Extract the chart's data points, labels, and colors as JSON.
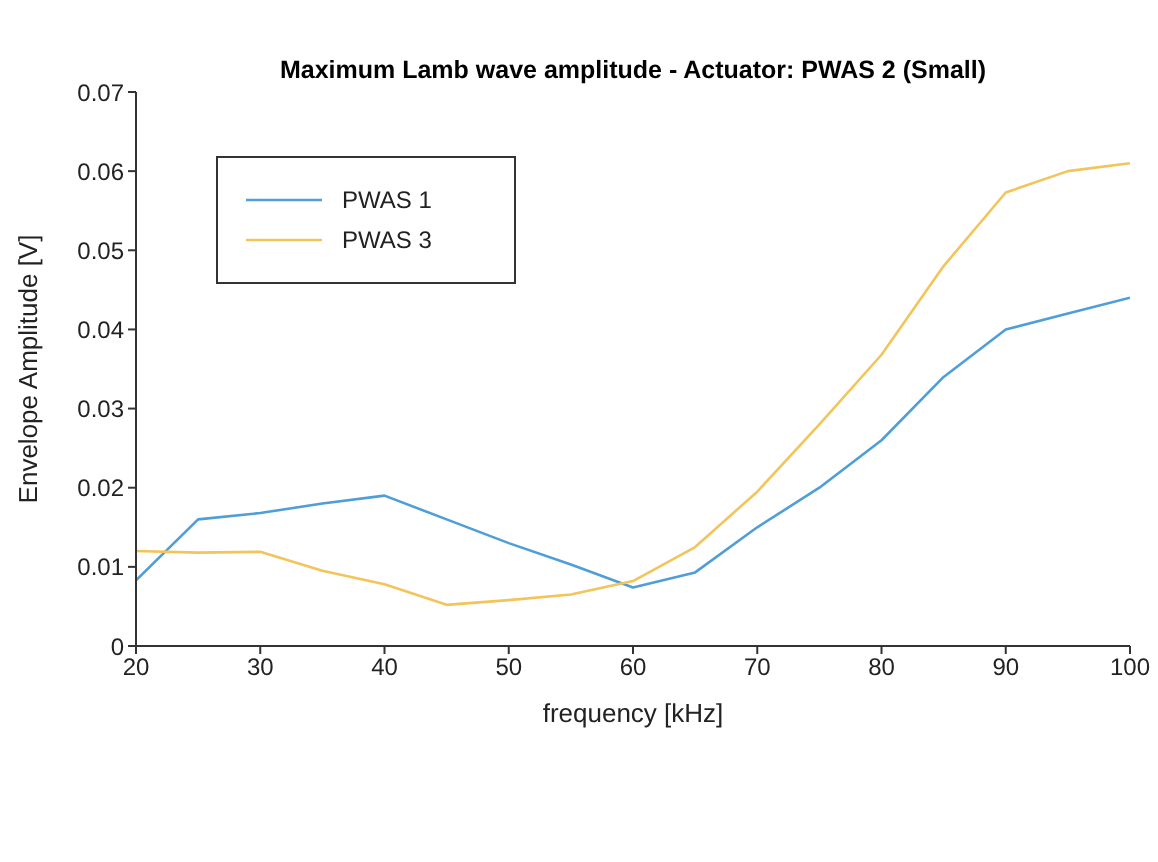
{
  "chart_data": {
    "type": "line",
    "title": "Maximum Lamb wave amplitude - Actuator: PWAS 2 (Small)",
    "xlabel": "frequency [kHz]",
    "ylabel": "Envelope Amplitude [V]",
    "x": [
      20,
      25,
      30,
      35,
      40,
      45,
      50,
      55,
      60,
      65,
      70,
      75,
      80,
      85,
      90,
      95,
      100
    ],
    "series": [
      {
        "name": "PWAS 1",
        "color": "#4f9ed8",
        "values": [
          0.0083,
          0.016,
          0.0168,
          0.018,
          0.019,
          0.016,
          0.013,
          0.0103,
          0.0074,
          0.0093,
          0.015,
          0.02,
          0.026,
          0.034,
          0.04,
          0.042,
          0.044
        ]
      },
      {
        "name": "PWAS 3",
        "color": "#f2c45a",
        "values": [
          0.012,
          0.0118,
          0.0119,
          0.0095,
          0.0078,
          0.0052,
          0.0058,
          0.0065,
          0.0082,
          0.0125,
          0.0195,
          0.028,
          0.0368,
          0.048,
          0.0573,
          0.06,
          0.061
        ]
      }
    ],
    "xlim": [
      20,
      100
    ],
    "xticks": [
      20,
      30,
      40,
      50,
      60,
      70,
      80,
      90,
      100
    ],
    "ylim": [
      0,
      0.07
    ],
    "yticks": [
      0,
      0.01,
      0.02,
      0.03,
      0.04,
      0.05,
      0.06,
      0.07
    ],
    "grid": false,
    "legend": "top left",
    "marker": "none",
    "line_style": "solid"
  }
}
